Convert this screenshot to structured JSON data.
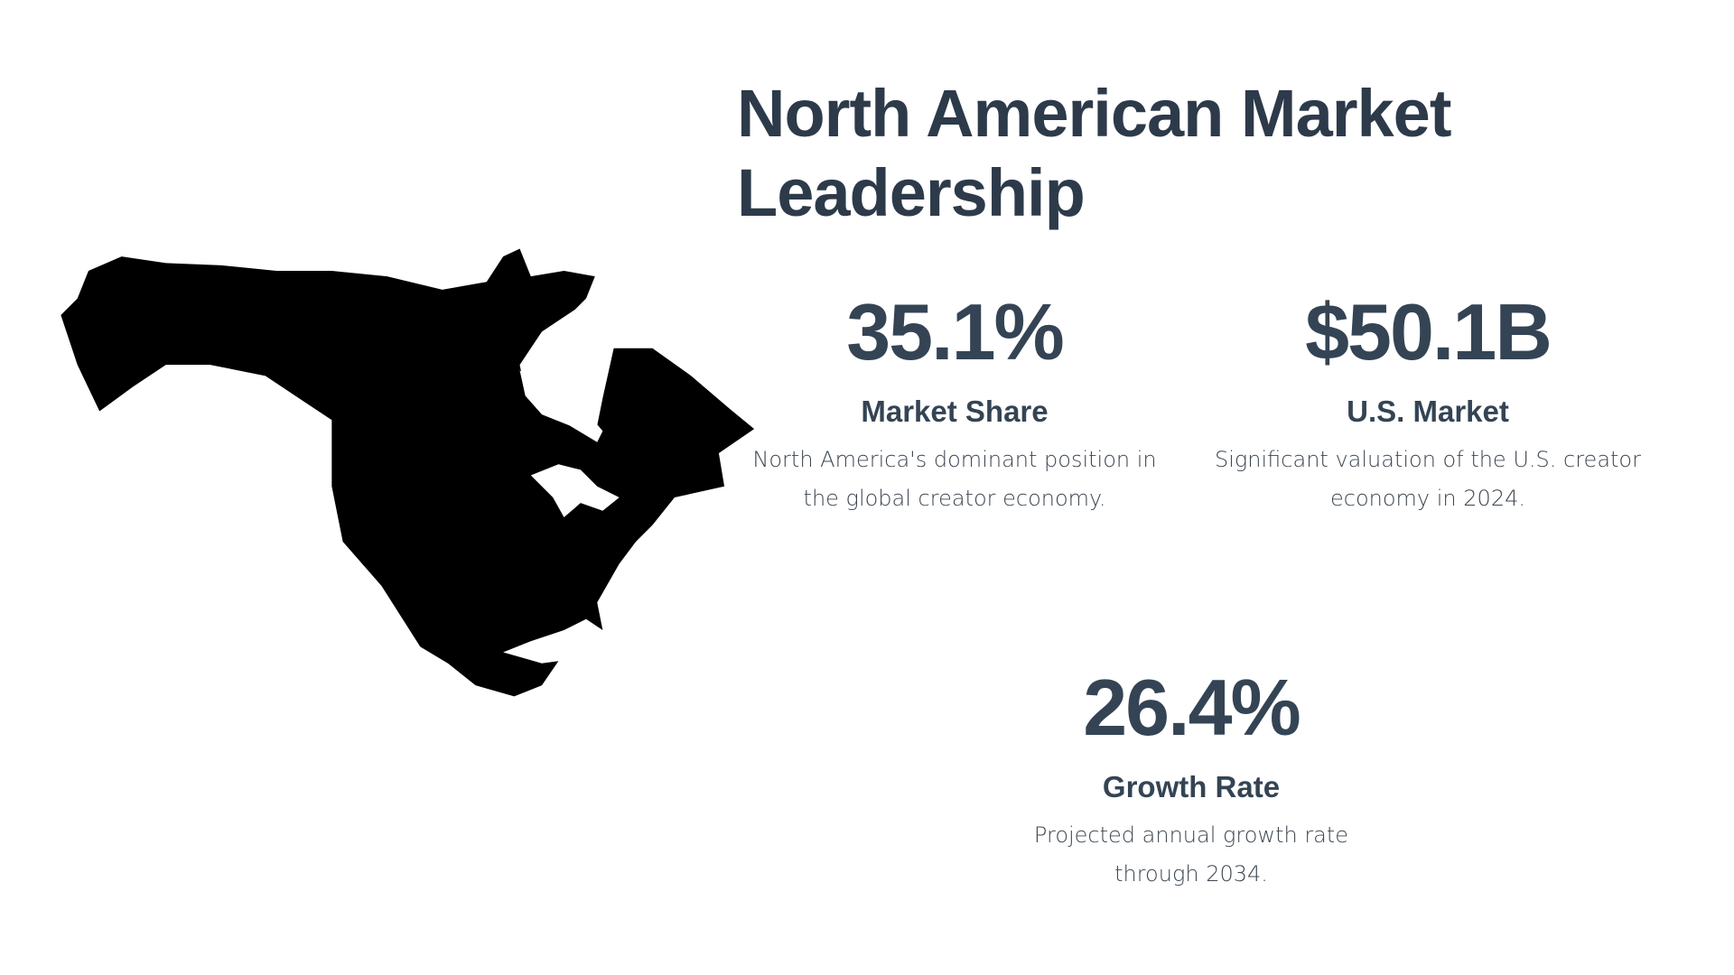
{
  "title": "North American Market Leadership",
  "map": {
    "icon": "north-america-map-silhouette",
    "color": "#000000"
  },
  "stats": [
    {
      "value": "35.1%",
      "label": "Market Share",
      "description": "North America's dominant position in the global creator economy."
    },
    {
      "value": "$50.1B",
      "label": "U.S. Market",
      "description": "Significant valuation of the U.S. creator economy in 2024."
    },
    {
      "value": "26.4%",
      "label": "Growth Rate",
      "description": "Projected annual growth rate through 2034."
    }
  ],
  "colors": {
    "heading": "#2d3a4a",
    "stat": "#344454",
    "text": "#3d4651"
  }
}
